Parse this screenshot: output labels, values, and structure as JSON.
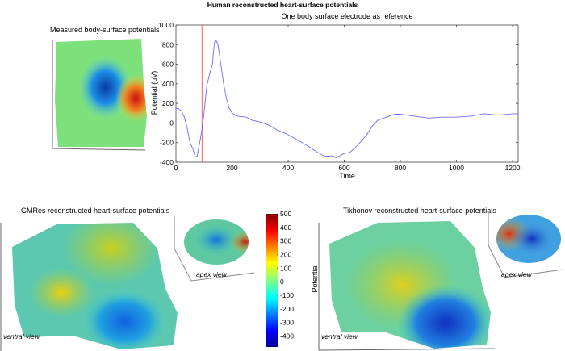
{
  "figure_title": "Human reconstructed heart-surface potentials",
  "panels": {
    "body_surface": {
      "title": "Measured body-surface potentials"
    },
    "gmres": {
      "title": "GMRes reconstructed heart-surface potentials",
      "ventral_label": "ventral view",
      "apex_label": "apex view"
    },
    "tikhonov": {
      "title": "Tikhonov reconstructed heart-surface potentials",
      "ventral_label": "ventral view",
      "apex_label": "apex view"
    }
  },
  "colorbar": {
    "label": "Potential",
    "range": [
      -480,
      500
    ],
    "ticks": [
      "500",
      "400",
      "300",
      "200",
      "100",
      "0",
      "-100",
      "-200",
      "-300",
      "-400"
    ],
    "colormap": "jet"
  },
  "chart_data": {
    "type": "line",
    "title": "One body surface electrode as reference",
    "xlabel": "Time",
    "ylabel": "Potential (uV)",
    "xlim": [
      0,
      1220
    ],
    "ylim": [
      -400,
      1000
    ],
    "xticks": [
      "0",
      "200",
      "400",
      "600",
      "800",
      "1000",
      "1200"
    ],
    "yticks": [
      "1000",
      "800",
      "600",
      "400",
      "200",
      "0",
      "-200",
      "-400"
    ],
    "line_color": "#6b6bff",
    "marker_line": {
      "x": 93,
      "color": "#ff6060"
    },
    "series": [
      {
        "x": [
          0,
          10,
          20,
          30,
          40,
          50,
          60,
          68,
          75,
          85,
          93,
          100,
          110,
          120,
          130,
          137,
          142,
          150,
          160,
          170,
          180,
          190,
          200,
          220,
          250,
          270,
          300,
          330,
          360,
          400,
          450,
          500,
          530,
          560,
          570,
          600,
          620,
          650,
          680,
          700,
          720,
          750,
          780,
          800,
          850,
          900,
          950,
          1000,
          1050,
          1100,
          1150,
          1200,
          1220
        ],
        "y": [
          150,
          145,
          120,
          60,
          -50,
          -200,
          -260,
          -340,
          -345,
          -200,
          -60,
          100,
          380,
          500,
          600,
          820,
          850,
          800,
          600,
          400,
          250,
          150,
          100,
          70,
          60,
          30,
          10,
          -20,
          -70,
          -120,
          -200,
          -290,
          -340,
          -335,
          -355,
          -310,
          -300,
          -220,
          -120,
          -30,
          30,
          60,
          90,
          90,
          70,
          50,
          60,
          60,
          70,
          95,
          80,
          95,
          95
        ]
      }
    ]
  }
}
